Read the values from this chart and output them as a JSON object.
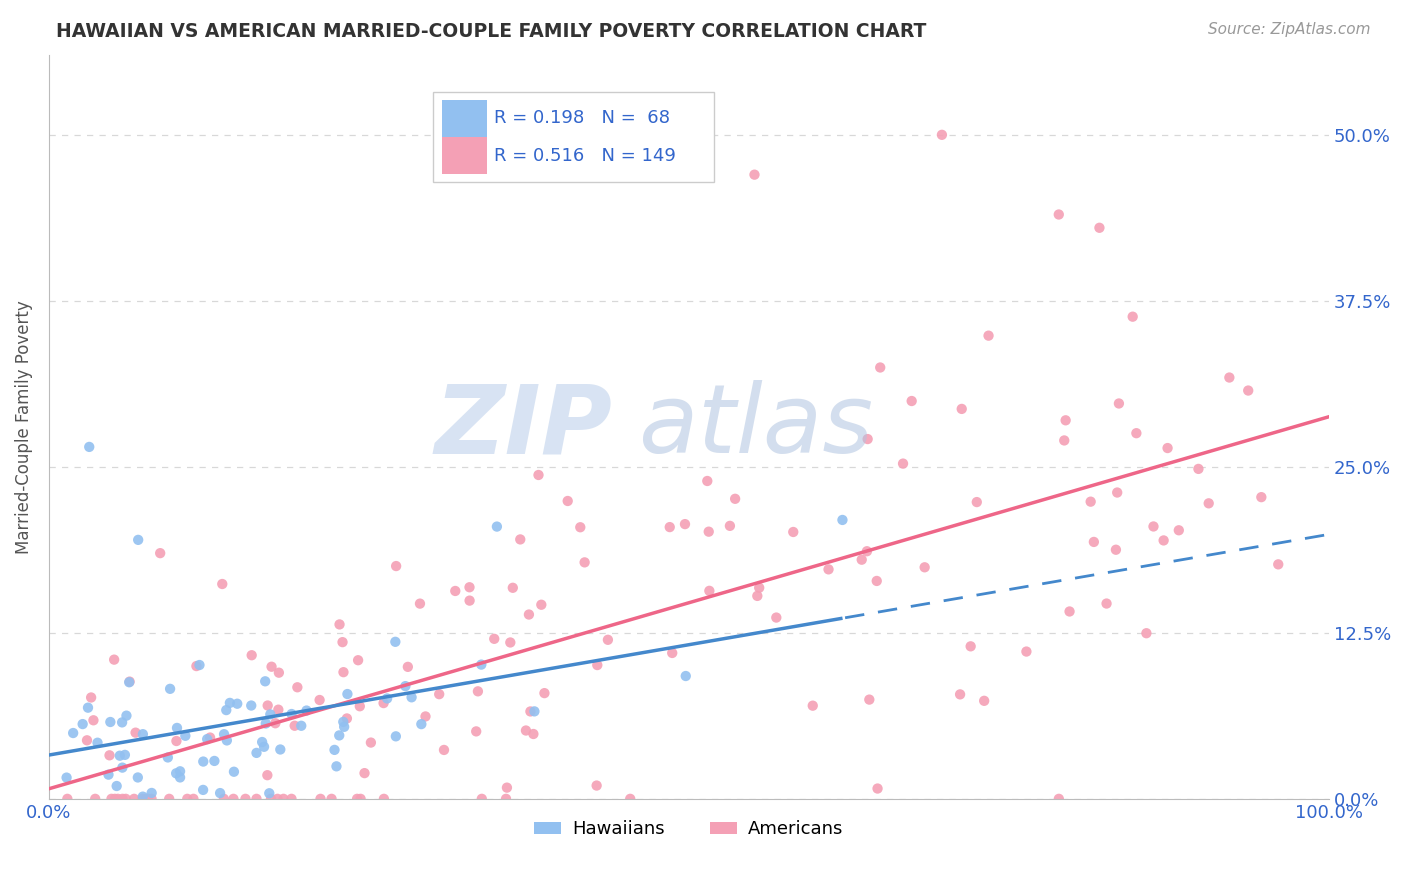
{
  "title": "HAWAIIAN VS AMERICAN MARRIED-COUPLE FAMILY POVERTY CORRELATION CHART",
  "source": "Source: ZipAtlas.com",
  "ylabel": "Married-Couple Family Poverty",
  "background_color": "#ffffff",
  "grid_color": "#d8d8d8",
  "hawaiian_color": "#92c0f0",
  "american_color": "#f4a0b5",
  "hawaiian_line_color": "#4488cc",
  "american_line_color": "#ee6688",
  "label_color": "#3366cc",
  "tick_color": "#3366cc",
  "title_color": "#333333",
  "source_color": "#999999",
  "ylabel_color": "#555555",
  "watermark_zip_color": "#c8d8ee",
  "watermark_atlas_color": "#b0c4e0",
  "legend_border_color": "#cccccc",
  "ytick_values": [
    0.0,
    0.125,
    0.25,
    0.375,
    0.5
  ],
  "ytick_labels": [
    "0.0%",
    "12.5%",
    "25.0%",
    "37.5%",
    "50.0%"
  ],
  "xtick_labels": [
    "0.0%",
    "100.0%"
  ],
  "ylim_max": 0.56,
  "hawaiian_seed": 42,
  "american_seed": 99
}
